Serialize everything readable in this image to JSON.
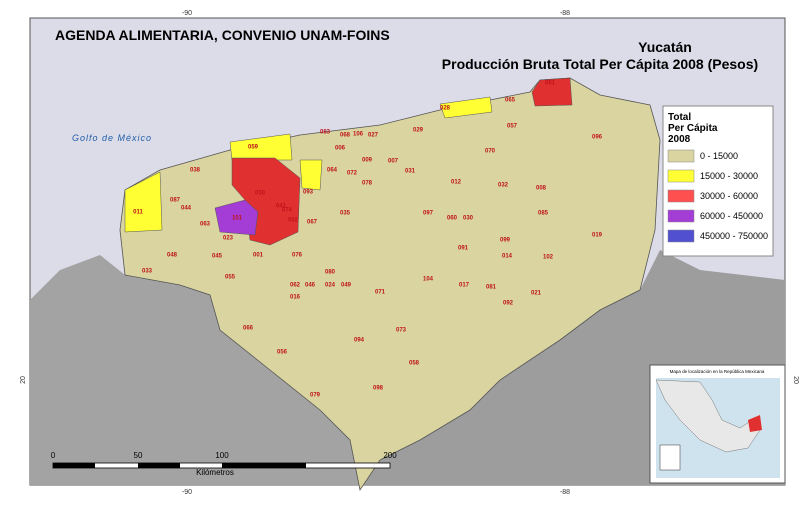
{
  "header": {
    "title": "AGENDA ALIMENTARIA, CONVENIO UNAM-FOINS",
    "state": "Yucatán",
    "subtitle": "Producción Bruta Total Per Cápita 2008 (Pesos)"
  },
  "sea_label": "Golfo de México",
  "coords": {
    "top": [
      "-90",
      "-88"
    ],
    "bottom": [
      "-90",
      "-88"
    ],
    "left": "20",
    "right": "20"
  },
  "legend": {
    "title": [
      "Total",
      "Per Cápita",
      "2008"
    ],
    "classes": [
      {
        "label": "0 - 15000",
        "color": "#d9d4a0"
      },
      {
        "label": "15000 - 30000",
        "color": "#ffff33"
      },
      {
        "label": "30000 - 60000",
        "color": "#ff5050"
      },
      {
        "label": "60000 - 450000",
        "color": "#a43cd6"
      },
      {
        "label": "450000 - 750000",
        "color": "#5050d0"
      }
    ]
  },
  "scale": {
    "ticks": [
      "0",
      "50",
      "100",
      "200"
    ],
    "unit": "Kilómetros"
  },
  "inset": {
    "title": "Mapa de localización en la República Mexicana"
  },
  "municipios": [
    "061",
    "028",
    "065",
    "029",
    "083",
    "068",
    "106",
    "027",
    "057",
    "096",
    "059",
    "006",
    "009",
    "064",
    "072",
    "078",
    "007",
    "031",
    "070",
    "038",
    "050",
    "087",
    "011",
    "044",
    "063",
    "101",
    "023",
    "074",
    "002",
    "067",
    "035",
    "093",
    "041",
    "048",
    "045",
    "001",
    "076",
    "033",
    "055",
    "062",
    "080",
    "016",
    "046",
    "024",
    "049",
    "071",
    "104",
    "012",
    "032",
    "008",
    "085",
    "019",
    "102",
    "099",
    "014",
    "097",
    "060",
    "030",
    "091",
    "017",
    "081",
    "021",
    "092",
    "066",
    "056",
    "073",
    "094",
    "058",
    "098",
    "079"
  ]
}
